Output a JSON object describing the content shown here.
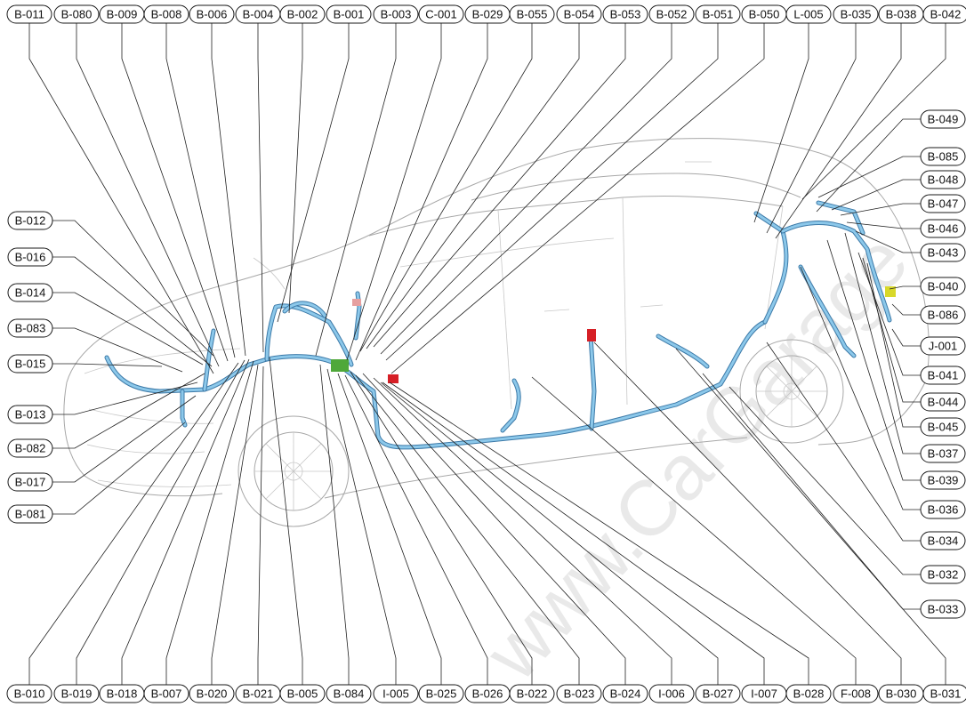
{
  "watermark": "www.CarGarage",
  "colors": {
    "harness_outer": "#3d7aa8",
    "harness_inner": "#8cc8ea",
    "connector_red": "#d61f26",
    "connector_green": "#4fa83a",
    "connector_yellow": "#d8d82a"
  },
  "labels": {
    "top": [
      "B-011",
      "B-080",
      "B-009",
      "B-008",
      "B-006",
      "B-004",
      "B-002",
      "B-001",
      "B-003",
      "C-001",
      "B-029",
      "B-055",
      "B-054",
      "B-053",
      "B-052",
      "B-051",
      "B-050",
      "L-005",
      "B-035",
      "B-038",
      "B-042"
    ],
    "bottom": [
      "B-010",
      "B-019",
      "B-018",
      "B-007",
      "B-020",
      "B-021",
      "B-005",
      "B-084",
      "I-005",
      "B-025",
      "B-026",
      "B-022",
      "B-023",
      "B-024",
      "I-006",
      "B-027",
      "I-007",
      "B-028",
      "F-008",
      "B-030",
      "B-031"
    ],
    "left": [
      "B-012",
      "B-016",
      "B-014",
      "B-083",
      "B-015",
      "B-013",
      "B-082",
      "B-017",
      "B-081"
    ],
    "right": [
      "B-049",
      "B-085",
      "B-048",
      "B-047",
      "B-046",
      "B-043",
      "B-040",
      "B-086",
      "J-001",
      "B-041",
      "B-044",
      "B-045",
      "B-037",
      "B-039",
      "B-036",
      "B-034",
      "B-032",
      "B-033"
    ]
  }
}
